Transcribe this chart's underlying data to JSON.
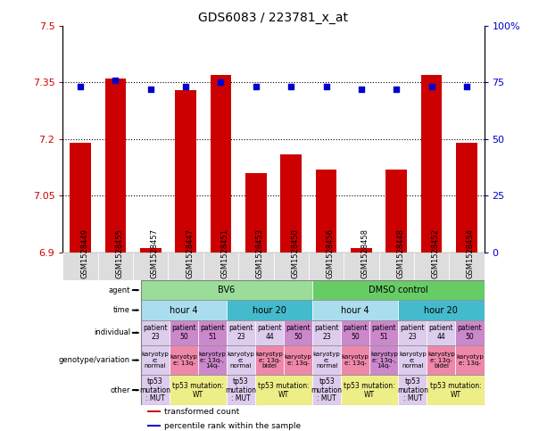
{
  "title": "GDS6083 / 223781_x_at",
  "samples": [
    "GSM1528449",
    "GSM1528455",
    "GSM1528457",
    "GSM1528447",
    "GSM1528451",
    "GSM1528453",
    "GSM1528450",
    "GSM1528456",
    "GSM1528458",
    "GSM1528448",
    "GSM1528452",
    "GSM1528454"
  ],
  "bar_values": [
    7.19,
    7.36,
    6.91,
    7.33,
    7.37,
    7.11,
    7.16,
    7.12,
    6.91,
    7.12,
    7.37,
    7.19
  ],
  "scatter_values": [
    73,
    76,
    72,
    73,
    75,
    73,
    73,
    73,
    72,
    72,
    73,
    73
  ],
  "bar_bottom": 6.9,
  "ylim_left": [
    6.9,
    7.5
  ],
  "ylim_right": [
    0,
    100
  ],
  "yticks_left": [
    6.9,
    7.05,
    7.2,
    7.35,
    7.5
  ],
  "yticks_right": [
    0,
    25,
    50,
    75,
    100
  ],
  "ytick_labels_left": [
    "6.9",
    "7.05",
    "7.2",
    "7.35",
    "7.5"
  ],
  "ytick_labels_right": [
    "0",
    "25",
    "50",
    "75",
    "100%"
  ],
  "hlines": [
    7.05,
    7.2,
    7.35
  ],
  "bar_color": "#cc0000",
  "scatter_color": "#0000cc",
  "bar_width": 0.6,
  "agent_groups": [
    {
      "text": "BV6",
      "span": [
        0,
        6
      ],
      "color": "#99dd99"
    },
    {
      "text": "DMSO control",
      "span": [
        6,
        12
      ],
      "color": "#66cc66"
    }
  ],
  "time_groups": [
    {
      "text": "hour 4",
      "span": [
        0,
        3
      ],
      "color": "#aaddee"
    },
    {
      "text": "hour 20",
      "span": [
        3,
        6
      ],
      "color": "#44bbcc"
    },
    {
      "text": "hour 4",
      "span": [
        6,
        9
      ],
      "color": "#aaddee"
    },
    {
      "text": "hour 20",
      "span": [
        9,
        12
      ],
      "color": "#44bbcc"
    }
  ],
  "individual_cells": [
    {
      "text": "patient\n23",
      "color": "#ddccee"
    },
    {
      "text": "patient\n50",
      "color": "#cc88cc"
    },
    {
      "text": "patient\n51",
      "color": "#cc88cc"
    },
    {
      "text": "patient\n23",
      "color": "#ddccee"
    },
    {
      "text": "patient\n44",
      "color": "#ddccee"
    },
    {
      "text": "patient\n50",
      "color": "#cc88cc"
    },
    {
      "text": "patient\n23",
      "color": "#ddccee"
    },
    {
      "text": "patient\n50",
      "color": "#cc88cc"
    },
    {
      "text": "patient\n51",
      "color": "#cc88cc"
    },
    {
      "text": "patient\n23",
      "color": "#ddccee"
    },
    {
      "text": "patient\n44",
      "color": "#ddccee"
    },
    {
      "text": "patient\n50",
      "color": "#cc88cc"
    }
  ],
  "genotype_cells": [
    {
      "text": "karyotyp\ne:\nnormal",
      "color": "#ddccee"
    },
    {
      "text": "karyotyp\ne: 13q-",
      "color": "#ee88aa"
    },
    {
      "text": "karyotyp\ne: 13q-,\n14q-",
      "color": "#cc88cc"
    },
    {
      "text": "karyotyp\ne:\nnormal",
      "color": "#ddccee"
    },
    {
      "text": "karyotyp\ne: 13q-\nbidel",
      "color": "#ee88aa"
    },
    {
      "text": "karyotyp\ne: 13q-",
      "color": "#ee88aa"
    },
    {
      "text": "karyotyp\ne:\nnormal",
      "color": "#ddccee"
    },
    {
      "text": "karyotyp\ne: 13q-",
      "color": "#ee88aa"
    },
    {
      "text": "karyotyp\ne: 13q-,\n14q-",
      "color": "#cc88cc"
    },
    {
      "text": "karyotyp\ne:\nnormal",
      "color": "#ddccee"
    },
    {
      "text": "karyotyp\ne: 13q-\nbidel",
      "color": "#ee88aa"
    },
    {
      "text": "karyotyp\ne: 13q-",
      "color": "#ee88aa"
    }
  ],
  "other_groups": [
    {
      "text": "tp53\nmutation\n: MUT",
      "span": [
        0,
        1
      ],
      "color": "#ddccee"
    },
    {
      "text": "tp53 mutation:\nWT",
      "span": [
        1,
        3
      ],
      "color": "#eeee88"
    },
    {
      "text": "tp53\nmutation\n: MUT",
      "span": [
        3,
        4
      ],
      "color": "#ddccee"
    },
    {
      "text": "tp53 mutation:\nWT",
      "span": [
        4,
        6
      ],
      "color": "#eeee88"
    },
    {
      "text": "tp53\nmutation\n: MUT",
      "span": [
        6,
        7
      ],
      "color": "#ddccee"
    },
    {
      "text": "tp53 mutation:\nWT",
      "span": [
        7,
        9
      ],
      "color": "#eeee88"
    },
    {
      "text": "tp53\nmutation\n: MUT",
      "span": [
        9,
        10
      ],
      "color": "#ddccee"
    },
    {
      "text": "tp53 mutation:\nWT",
      "span": [
        10,
        12
      ],
      "color": "#eeee88"
    }
  ],
  "row_labels": [
    "agent",
    "time",
    "individual",
    "genotype/variation",
    "other"
  ],
  "legend_items": [
    {
      "label": "transformed count",
      "color": "#cc0000"
    },
    {
      "label": "percentile rank within the sample",
      "color": "#0000cc"
    }
  ],
  "bg_color": "#ffffff",
  "left_label_color": "#cc0000",
  "right_label_color": "#0000cc"
}
